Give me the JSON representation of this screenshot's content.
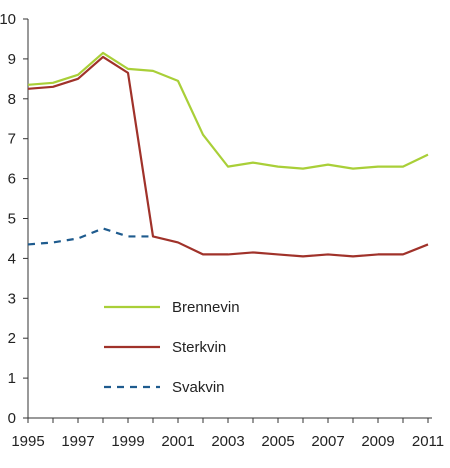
{
  "chart_data": {
    "type": "line",
    "x": [
      1995,
      1996,
      1997,
      1998,
      1999,
      2000,
      2001,
      2002,
      2003,
      2004,
      2005,
      2006,
      2007,
      2008,
      2009,
      2010,
      2011
    ],
    "x_tick_labels": [
      "1995",
      "1997",
      "1999",
      "2001",
      "2003",
      "2005",
      "2007",
      "2009",
      "2011"
    ],
    "y_tick_labels": [
      "0",
      "1",
      "2",
      "3",
      "4",
      "5",
      "6",
      "7",
      "8",
      "9",
      "10"
    ],
    "ylim": [
      0,
      10
    ],
    "xlim": [
      1995,
      2011
    ],
    "grid": false,
    "legend_position": "center-left",
    "series": [
      {
        "name": "Brennevin",
        "color": "#a9cf38",
        "style": "solid",
        "values": [
          8.35,
          8.4,
          8.6,
          9.15,
          8.75,
          8.7,
          8.45,
          7.1,
          6.3,
          6.4,
          6.3,
          6.25,
          6.35,
          6.25,
          6.3,
          6.3,
          6.6
        ]
      },
      {
        "name": "Sterkvin",
        "color": "#a0322a",
        "style": "solid",
        "values": [
          8.25,
          8.3,
          8.5,
          9.05,
          8.65,
          4.55,
          4.4,
          4.1,
          4.1,
          4.15,
          4.1,
          4.05,
          4.1,
          4.05,
          4.1,
          4.1,
          4.35
        ]
      },
      {
        "name": "Svakvin",
        "color": "#1e5b8e",
        "style": "dashed",
        "values": [
          4.35,
          4.4,
          4.5,
          4.75,
          4.55,
          4.55,
          null,
          null,
          null,
          null,
          null,
          null,
          null,
          null,
          null,
          null,
          null
        ]
      }
    ]
  }
}
